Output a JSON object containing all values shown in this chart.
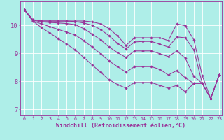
{
  "xlabel": "Windchill (Refroidissement éolien,°C)",
  "background_color": "#aeeee8",
  "line_color": "#993399",
  "grid_color": "#cceeee",
  "xlim": [
    -0.5,
    23.3
  ],
  "ylim": [
    6.8,
    10.85
  ],
  "xticks": [
    0,
    1,
    2,
    3,
    4,
    5,
    6,
    7,
    8,
    9,
    10,
    11,
    12,
    13,
    14,
    15,
    16,
    17,
    18,
    19,
    20,
    21,
    22,
    23
  ],
  "yticks": [
    7,
    8,
    9,
    10
  ],
  "lines": [
    [
      10.55,
      10.2,
      10.15,
      10.15,
      10.15,
      10.15,
      10.15,
      10.15,
      10.12,
      10.05,
      9.88,
      9.62,
      9.28,
      9.55,
      9.55,
      9.55,
      9.55,
      9.45,
      10.05,
      9.98,
      9.48,
      8.2,
      7.38,
      8.22
    ],
    [
      10.55,
      10.2,
      10.15,
      10.15,
      10.15,
      10.15,
      10.13,
      10.08,
      10.0,
      9.85,
      9.62,
      9.35,
      9.15,
      9.4,
      9.42,
      9.42,
      9.32,
      9.22,
      9.58,
      9.55,
      9.12,
      7.92,
      7.38,
      8.22
    ],
    [
      10.55,
      10.18,
      10.12,
      10.1,
      10.08,
      10.06,
      10.02,
      9.88,
      9.68,
      9.48,
      9.22,
      9.02,
      8.85,
      9.08,
      9.08,
      9.08,
      8.98,
      8.88,
      9.08,
      8.82,
      8.18,
      7.92,
      7.38,
      8.22
    ],
    [
      10.55,
      10.15,
      10.05,
      9.95,
      9.85,
      9.75,
      9.65,
      9.45,
      9.22,
      8.98,
      8.72,
      8.52,
      8.32,
      8.52,
      8.52,
      8.52,
      8.42,
      8.22,
      8.38,
      8.12,
      7.92,
      7.92,
      7.38,
      8.22
    ],
    [
      10.55,
      10.15,
      9.92,
      9.72,
      9.52,
      9.32,
      9.12,
      8.85,
      8.58,
      8.32,
      8.05,
      7.88,
      7.75,
      7.95,
      7.95,
      7.95,
      7.85,
      7.75,
      7.85,
      7.62,
      7.92,
      7.92,
      7.38,
      8.22
    ]
  ],
  "markersize": 1.8,
  "linewidth": 0.75,
  "tick_fontsize": 4.8,
  "xlabel_fontsize": 6.0
}
